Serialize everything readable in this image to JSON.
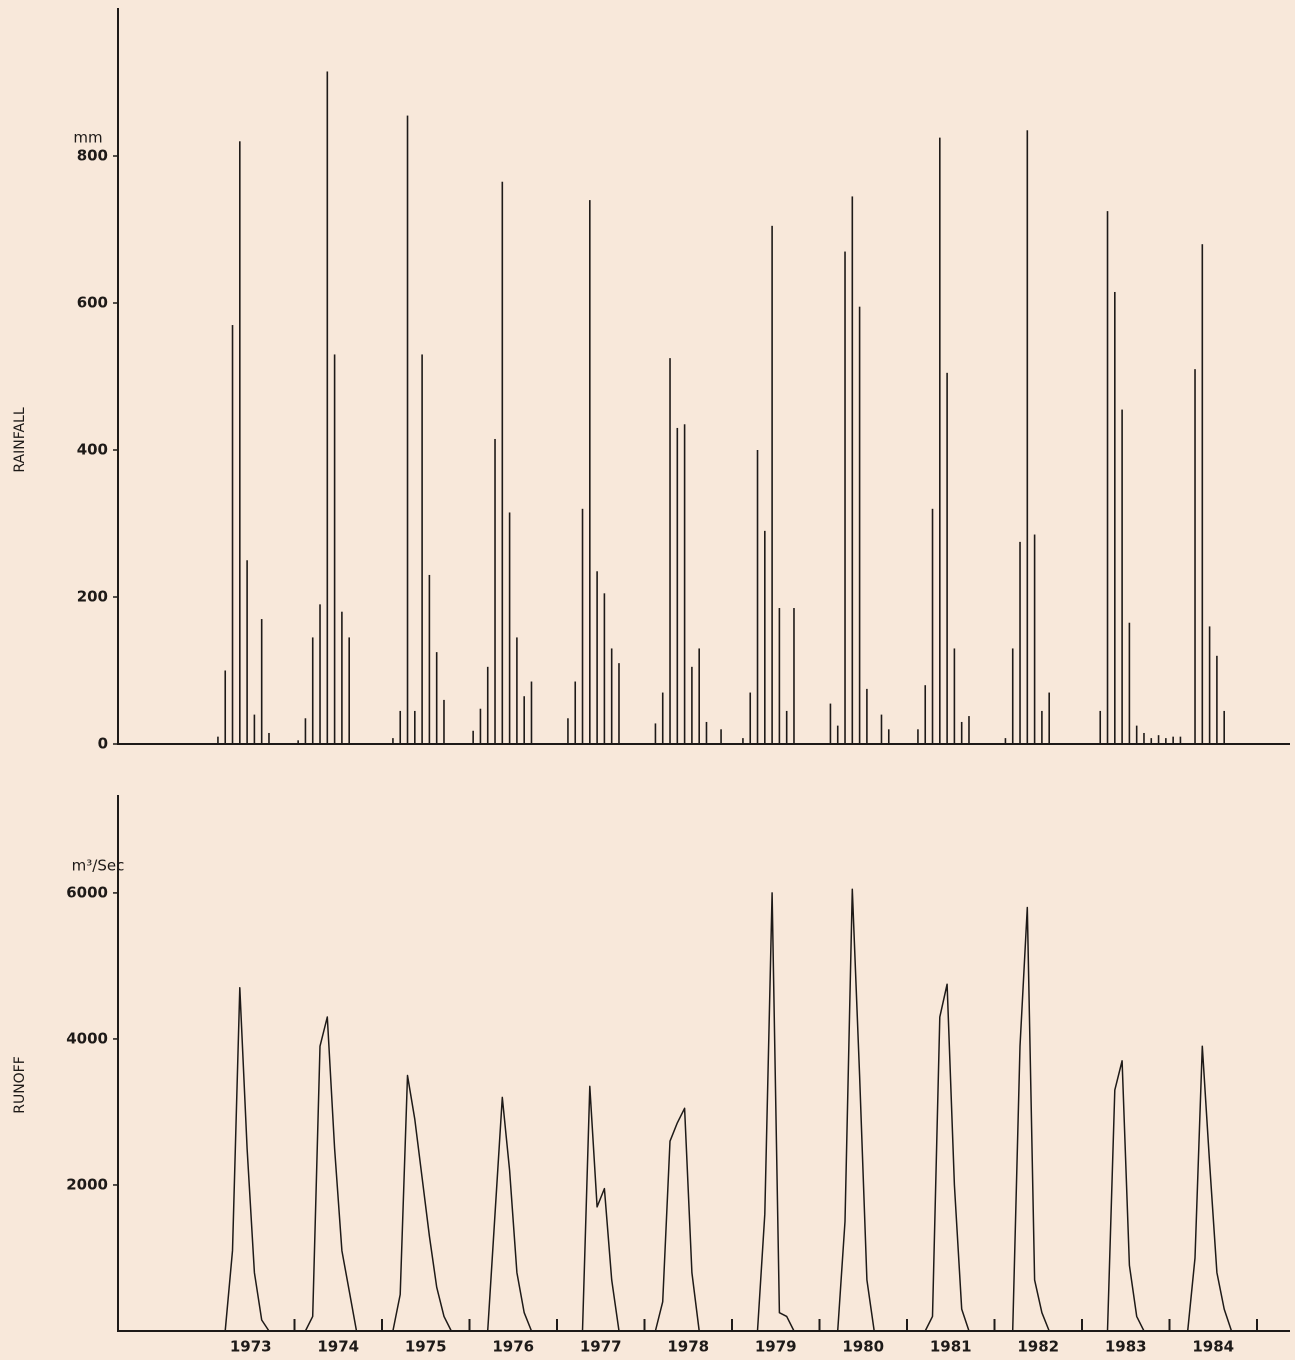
{
  "chart_data": [
    {
      "type": "bar",
      "ylabel": "RAINFALL",
      "unit": "mm",
      "color": "#1e1a18",
      "ylim": [
        0,
        1000
      ],
      "yticks": [
        0,
        200,
        400,
        600,
        800
      ],
      "values": [
        [
          0,
          10,
          100,
          570,
          820,
          250,
          40,
          170,
          15,
          0,
          0,
          0
        ],
        [
          5,
          35,
          145,
          190,
          915,
          530,
          180,
          145,
          0,
          0,
          0,
          0
        ],
        [
          0,
          8,
          45,
          855,
          45,
          530,
          230,
          125,
          60,
          0,
          0,
          0
        ],
        [
          18,
          48,
          105,
          415,
          765,
          315,
          145,
          65,
          85,
          0,
          0,
          0
        ],
        [
          0,
          35,
          85,
          320,
          740,
          235,
          205,
          130,
          110,
          0,
          0,
          0
        ],
        [
          0,
          28,
          70,
          525,
          430,
          435,
          105,
          130,
          30,
          0,
          20,
          0
        ],
        [
          0,
          8,
          70,
          400,
          290,
          705,
          185,
          45,
          185,
          0,
          0,
          0
        ],
        [
          0,
          55,
          25,
          670,
          745,
          595,
          75,
          0,
          40,
          20,
          0,
          0
        ],
        [
          0,
          20,
          80,
          320,
          825,
          505,
          130,
          30,
          38,
          0,
          0,
          0
        ],
        [
          0,
          8,
          130,
          275,
          835,
          285,
          45,
          70,
          0,
          0,
          0,
          0
        ],
        [
          0,
          0,
          45,
          725,
          615,
          455,
          165,
          25,
          15,
          8,
          12,
          8
        ],
        [
          10,
          10,
          0,
          510,
          680,
          160,
          120,
          45,
          0,
          0,
          0,
          0
        ]
      ]
    },
    {
      "type": "line",
      "ylabel": "RUNOFF",
      "unit": "m³/Sec",
      "color": "#1e1a18",
      "ylim": [
        0,
        7300
      ],
      "yticks": [
        2000,
        4000,
        6000
      ],
      "categories": [
        "1973",
        "1974",
        "1975",
        "1976",
        "1977",
        "1978",
        "1979",
        "1980",
        "1981",
        "1982",
        "1983",
        "1984"
      ],
      "values": [
        [
          0,
          0,
          0,
          1100,
          4700,
          2500,
          800,
          150,
          0,
          0,
          0,
          0
        ],
        [
          0,
          0,
          200,
          3900,
          4300,
          2500,
          1100,
          550,
          0,
          0,
          0,
          0
        ],
        [
          0,
          0,
          500,
          3500,
          2900,
          2100,
          1300,
          600,
          200,
          0,
          0,
          0
        ],
        [
          0,
          0,
          0,
          1600,
          3200,
          2200,
          800,
          250,
          0,
          0,
          0,
          0
        ],
        [
          0,
          0,
          0,
          0,
          3350,
          1700,
          1950,
          700,
          0,
          0,
          0,
          0
        ],
        [
          0,
          0,
          400,
          2600,
          2850,
          3050,
          800,
          0,
          0,
          0,
          0,
          0
        ],
        [
          0,
          0,
          0,
          0,
          1600,
          6000,
          250,
          200,
          0,
          0,
          0,
          0
        ],
        [
          0,
          0,
          0,
          1500,
          6050,
          3500,
          700,
          0,
          0,
          0,
          0,
          0
        ],
        [
          0,
          0,
          0,
          200,
          4300,
          4750,
          2000,
          300,
          0,
          0,
          0,
          0
        ],
        [
          0,
          0,
          0,
          3900,
          5800,
          700,
          250,
          0,
          0,
          0,
          0,
          0
        ],
        [
          0,
          0,
          0,
          0,
          3300,
          3700,
          900,
          200,
          0,
          0,
          0,
          0
        ],
        [
          0,
          0,
          0,
          1000,
          3900,
          2300,
          800,
          300,
          0,
          0,
          0,
          0
        ]
      ]
    }
  ]
}
